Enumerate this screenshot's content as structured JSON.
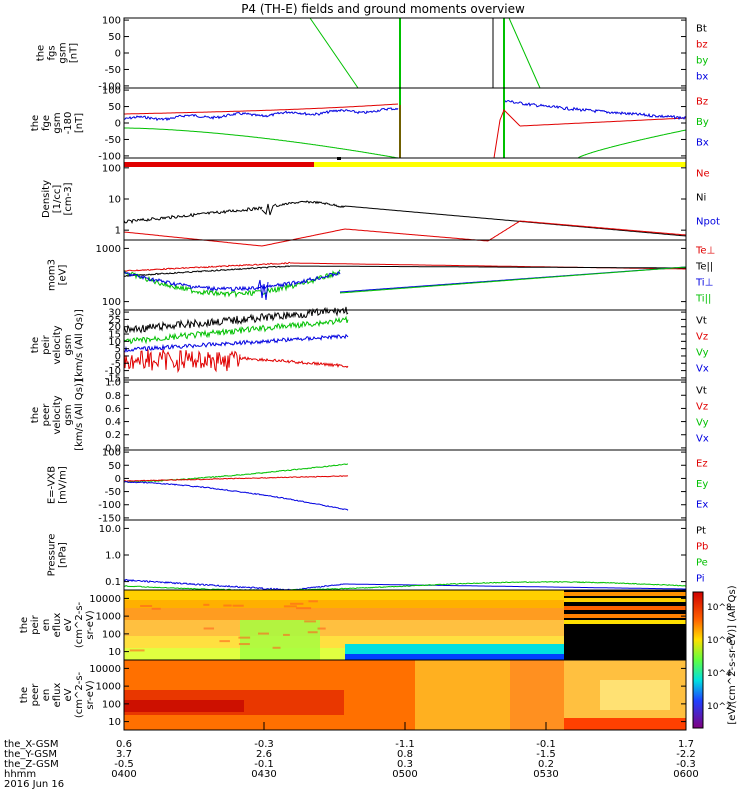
{
  "chart_data": {
    "type": "line",
    "title": "P4 (TH-E) fields and ground moments overview",
    "x_ticks": [
      "0400",
      "0430",
      "0500",
      "0530",
      "0600"
    ],
    "footer_rows": [
      {
        "label": "the_X-GSM",
        "values": [
          "0.6",
          "-0.3",
          "-1.1",
          "-0.1",
          "1.7"
        ]
      },
      {
        "label": "the_Y-GSM",
        "values": [
          "3.7",
          "2.6",
          "0.8",
          "-1.5",
          "-2.2"
        ]
      },
      {
        "label": "the_Z-GSM",
        "values": [
          "-0.5",
          "-0.1",
          "0.3",
          "0.2",
          "-0.3"
        ]
      },
      {
        "label": "hhmm",
        "values": [
          "0400",
          "0430",
          "0500",
          "0530",
          "0600"
        ]
      }
    ],
    "date_label": "2016 Jun 16",
    "colorbar": {
      "ticks": [
        "10^8",
        "10^6",
        "10^4",
        "10^2",
        "10^8",
        "10^6",
        "10^4",
        "10^2"
      ],
      "label": "[eV/(cm^2-s-sr-eV)] (All Qs)"
    },
    "panels": [
      {
        "name": "fgs",
        "ylabel": [
          "the",
          "fgs",
          "gsm",
          "[nT]"
        ],
        "yticks": [
          "100",
          "50",
          "0",
          "-50",
          "-100"
        ],
        "legend": [
          {
            "text": "Bt",
            "color": "#000000"
          },
          {
            "text": "bz",
            "color": "#e00000"
          },
          {
            "text": "by",
            "color": "#00c000"
          },
          {
            "text": "bx",
            "color": "#0000e0"
          }
        ]
      },
      {
        "name": "fge",
        "ylabel": [
          "the",
          "fge",
          "gsm",
          "-180",
          "[nT]"
        ],
        "yticks": [
          "100",
          "50",
          "0",
          "-50",
          "-100"
        ],
        "legend": [
          {
            "text": "Bz",
            "color": "#e00000"
          },
          {
            "text": "By",
            "color": "#00c000"
          },
          {
            "text": "Bx",
            "color": "#0000e0"
          }
        ]
      },
      {
        "name": "density",
        "ylabel": [
          "Density",
          "[1/cc]",
          "[cm-3]"
        ],
        "yticks": [
          "100",
          "10",
          "1"
        ],
        "legend": [
          {
            "text": "Ne",
            "color": "#e00000"
          },
          {
            "text": "Ni",
            "color": "#000000"
          },
          {
            "text": "Npot",
            "color": "#0000e0"
          }
        ]
      },
      {
        "name": "temp",
        "ylabel": [
          "mom3",
          "[eV]"
        ],
        "yticks": [
          "1000",
          "100"
        ],
        "legend": [
          {
            "text": "Te⊥",
            "color": "#e00000"
          },
          {
            "text": "Te||",
            "color": "#000000"
          },
          {
            "text": "Ti⊥",
            "color": "#0000e0"
          },
          {
            "text": "Ti||",
            "color": "#00c000"
          }
        ]
      },
      {
        "name": "peir_vel",
        "ylabel": [
          "the",
          "peir",
          "velocity",
          "gsm",
          "[km/s (All Qs)]"
        ],
        "yticks": [
          "30",
          "25",
          "20",
          "15",
          "10",
          "5",
          "0",
          "-5",
          "-10",
          "-15"
        ],
        "legend": [
          {
            "text": "Vt",
            "color": "#000000"
          },
          {
            "text": "Vz",
            "color": "#e00000"
          },
          {
            "text": "Vy",
            "color": "#00c000"
          },
          {
            "text": "Vx",
            "color": "#0000e0"
          }
        ]
      },
      {
        "name": "peer_vel",
        "ylabel": [
          "the",
          "peer",
          "velocity",
          "gsm",
          "[km/s (All Qs)]"
        ],
        "yticks": [
          "1.0",
          "0.8",
          "0.6",
          "0.4",
          "0.2",
          "0.0"
        ],
        "legend": [
          {
            "text": "Vt",
            "color": "#000000"
          },
          {
            "text": "Vz",
            "color": "#e00000"
          },
          {
            "text": "Vy",
            "color": "#00c000"
          },
          {
            "text": "Vx",
            "color": "#0000e0"
          }
        ]
      },
      {
        "name": "efield",
        "ylabel": [
          "E=-VXB",
          "[mV/m]"
        ],
        "yticks": [
          "100",
          "50",
          "0",
          "-50",
          "-100",
          "-150"
        ],
        "legend": [
          {
            "text": "Ez",
            "color": "#e00000"
          },
          {
            "text": "Ey",
            "color": "#00c000"
          },
          {
            "text": "Ex",
            "color": "#0000e0"
          }
        ]
      },
      {
        "name": "pressure",
        "ylabel": [
          "Pressure",
          "[nPa]"
        ],
        "yticks": [
          "10.0",
          "1.0",
          "0.1"
        ],
        "legend": [
          {
            "text": "Pt",
            "color": "#000000"
          },
          {
            "text": "Pb",
            "color": "#e00000"
          },
          {
            "text": "Pe",
            "color": "#00c000"
          },
          {
            "text": "Pi",
            "color": "#0000e0"
          }
        ]
      },
      {
        "name": "peir_eflux",
        "ylabel": [
          "the",
          "peir",
          "en",
          "eflux",
          "eV",
          "(cm^2-s-",
          "sr-eV)"
        ],
        "yticks": [
          "10000",
          "1000",
          "100",
          "10"
        ],
        "legend": []
      },
      {
        "name": "peer_eflux",
        "ylabel": [
          "the",
          "peer",
          "en",
          "eflux",
          "eV",
          "(cm^2-s-",
          "sr-eV)"
        ],
        "yticks": [
          "10000",
          "1000",
          "100",
          "10"
        ],
        "legend": []
      }
    ]
  }
}
